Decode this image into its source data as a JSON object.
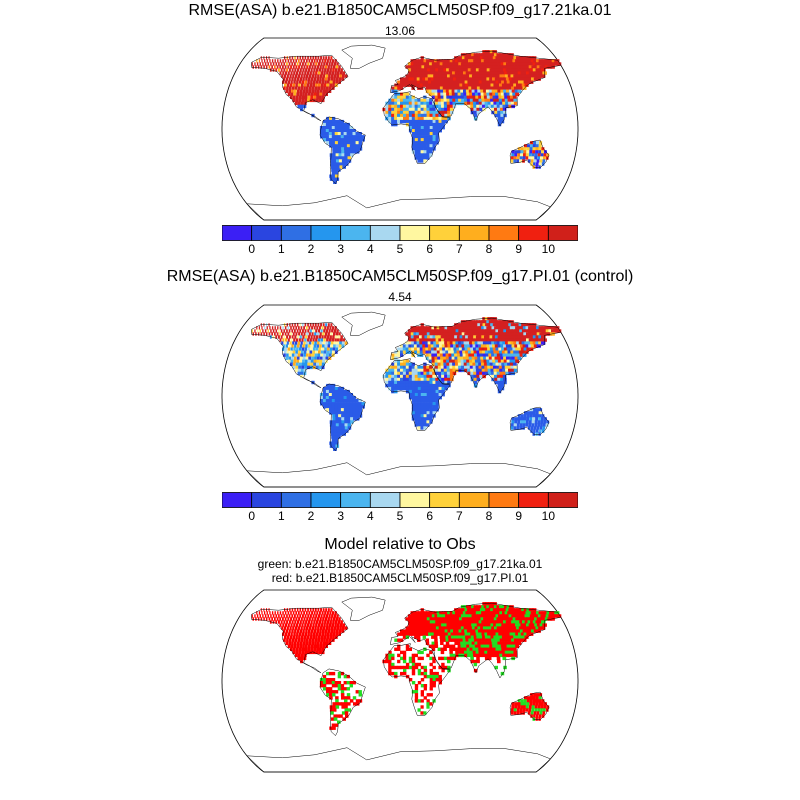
{
  "panels": [
    {
      "title": "RMSE(ASA) b.e21.B1850CAM5CLM50SP.f09_g17.21ka.01",
      "value": "13.06"
    },
    {
      "title": "RMSE(ASA) b.e21.B1850CAM5CLM50SP.f09_g17.PI.01 (control)",
      "value": "4.54"
    },
    {
      "title": "Model relative to Obs",
      "legend_green": "green: b.e21.B1850CAM5CLM50SP.f09_g17.21ka.01",
      "legend_red": "red: b.e21.B1850CAM5CLM50SP.f09_g17.PI.01"
    }
  ],
  "colorbar": {
    "ticks": [
      "0",
      "1",
      "2",
      "3",
      "4",
      "5",
      "6",
      "7",
      "8",
      "9",
      "10"
    ],
    "colors": [
      "#3b1ff5",
      "#2a45e0",
      "#2f6fe4",
      "#2596ee",
      "#4bb5ef",
      "#a9d8f0",
      "#fff7a0",
      "#ffd13a",
      "#ffae1e",
      "#ff7a12",
      "#f02010",
      "#d0201a"
    ]
  },
  "class_colors": {
    "green": "#22dd22",
    "red": "#ff0000",
    "dark_red": "#d42020",
    "blue": "#2a5be8"
  }
}
